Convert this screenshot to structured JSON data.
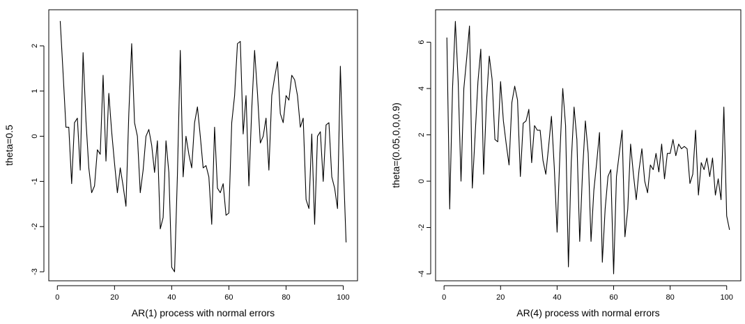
{
  "chart_data": [
    {
      "type": "line",
      "title": "",
      "xlabel": "AR(1) process with normal errors",
      "ylabel": "theta=0.5",
      "xlim": [
        -3,
        105
      ],
      "ylim": [
        -3.2,
        2.8
      ],
      "xticks": [
        0,
        20,
        40,
        60,
        80,
        100
      ],
      "yticks": [
        -3,
        -2,
        -1,
        0,
        1,
        2
      ],
      "grid": false,
      "series": [
        {
          "color": "#000000",
          "x": [
            1,
            2,
            3,
            4,
            5,
            6,
            7,
            8,
            9,
            10,
            11,
            12,
            13,
            14,
            15,
            16,
            17,
            18,
            19,
            20,
            21,
            22,
            23,
            24,
            25,
            26,
            27,
            28,
            29,
            30,
            31,
            32,
            33,
            34,
            35,
            36,
            37,
            38,
            39,
            40,
            41,
            42,
            43,
            44,
            45,
            46,
            47,
            48,
            49,
            50,
            51,
            52,
            53,
            54,
            55,
            56,
            57,
            58,
            59,
            60,
            61,
            62,
            63,
            64,
            65,
            66,
            67,
            68,
            69,
            70,
            71,
            72,
            73,
            74,
            75,
            76,
            77,
            78,
            79,
            80,
            81,
            82,
            83,
            84,
            85,
            86,
            87,
            88,
            89,
            90,
            91,
            92,
            93,
            94,
            95,
            96,
            97,
            98,
            99,
            100,
            101
          ],
          "y": [
            2.55,
            1.4,
            0.2,
            0.2,
            -1.05,
            0.3,
            0.4,
            -0.75,
            1.85,
            0.35,
            -0.7,
            -1.25,
            -1.1,
            -0.3,
            -0.4,
            1.35,
            -0.55,
            0.95,
            0.1,
            -0.6,
            -1.25,
            -0.7,
            -1.1,
            -1.55,
            0.5,
            2.05,
            0.3,
            0.0,
            -1.25,
            -0.75,
            0.0,
            0.15,
            -0.2,
            -0.8,
            -0.1,
            -2.05,
            -1.8,
            -0.1,
            -0.8,
            -2.9,
            -3.0,
            -0.85,
            1.9,
            -0.9,
            0.0,
            -0.4,
            -0.7,
            0.3,
            0.65,
            0.0,
            -0.7,
            -0.65,
            -0.9,
            -1.95,
            0.2,
            -1.15,
            -1.25,
            -1.05,
            -1.75,
            -1.7,
            0.3,
            0.9,
            2.05,
            2.1,
            0.05,
            0.9,
            -1.1,
            0.6,
            1.9,
            0.95,
            -0.15,
            0.0,
            0.4,
            -0.75,
            0.9,
            1.3,
            1.65,
            0.5,
            0.3,
            0.9,
            0.8,
            1.35,
            1.25,
            0.9,
            0.2,
            0.4,
            -1.4,
            -1.6,
            0.05,
            -1.95,
            0.0,
            0.1,
            -1.0,
            0.25,
            0.3,
            -0.9,
            -1.15,
            -1.6,
            1.55,
            -0.55,
            -2.35
          ]
        }
      ]
    },
    {
      "type": "line",
      "title": "",
      "xlabel": "AR(4) process with normal errors",
      "ylabel": "theta=(0.05,0,0,0.9)",
      "xlim": [
        -3,
        105
      ],
      "ylim": [
        -4.3,
        7.4
      ],
      "xticks": [
        0,
        20,
        40,
        60,
        80,
        100
      ],
      "yticks": [
        -4,
        -2,
        0,
        2,
        4,
        6
      ],
      "grid": false,
      "series": [
        {
          "color": "#000000",
          "x": [
            1,
            2,
            3,
            4,
            5,
            6,
            7,
            8,
            9,
            10,
            11,
            12,
            13,
            14,
            15,
            16,
            17,
            18,
            19,
            20,
            21,
            22,
            23,
            24,
            25,
            26,
            27,
            28,
            29,
            30,
            31,
            32,
            33,
            34,
            35,
            36,
            37,
            38,
            39,
            40,
            41,
            42,
            43,
            44,
            45,
            46,
            47,
            48,
            49,
            50,
            51,
            52,
            53,
            54,
            55,
            56,
            57,
            58,
            59,
            60,
            61,
            62,
            63,
            64,
            65,
            66,
            67,
            68,
            69,
            70,
            71,
            72,
            73,
            74,
            75,
            76,
            77,
            78,
            79,
            80,
            81,
            82,
            83,
            84,
            85,
            86,
            87,
            88,
            89,
            90,
            91,
            92,
            93,
            94,
            95,
            96,
            97,
            98,
            99,
            100,
            101
          ],
          "y": [
            6.2,
            -1.2,
            4.0,
            6.9,
            4.3,
            0.0,
            4.0,
            5.3,
            6.7,
            -0.3,
            2.0,
            4.3,
            5.7,
            0.3,
            3.4,
            5.4,
            4.4,
            1.8,
            1.7,
            4.3,
            2.6,
            1.6,
            0.7,
            3.4,
            4.1,
            3.5,
            0.2,
            2.5,
            2.6,
            3.1,
            0.8,
            2.4,
            2.2,
            2.2,
            0.9,
            0.3,
            1.5,
            2.8,
            0.6,
            -2.2,
            1.2,
            4.0,
            2.4,
            -3.7,
            0.8,
            3.2,
            1.8,
            -2.6,
            0.4,
            2.6,
            1.2,
            -2.6,
            -0.4,
            0.8,
            2.1,
            -3.5,
            -1.2,
            0.2,
            0.5,
            -4.0,
            0.2,
            1.2,
            2.2,
            -2.4,
            -1.2,
            1.6,
            0.3,
            -0.8,
            0.5,
            1.4,
            0.0,
            -0.5,
            0.7,
            0.5,
            1.2,
            0.4,
            1.6,
            0.1,
            1.2,
            1.2,
            1.8,
            1.1,
            1.6,
            1.4,
            1.5,
            1.4,
            -0.1,
            0.3,
            2.2,
            -0.6,
            0.8,
            0.5,
            1.0,
            0.2,
            1.0,
            -0.6,
            0.1,
            -0.8,
            3.2,
            -1.5,
            -2.1
          ]
        }
      ]
    }
  ]
}
